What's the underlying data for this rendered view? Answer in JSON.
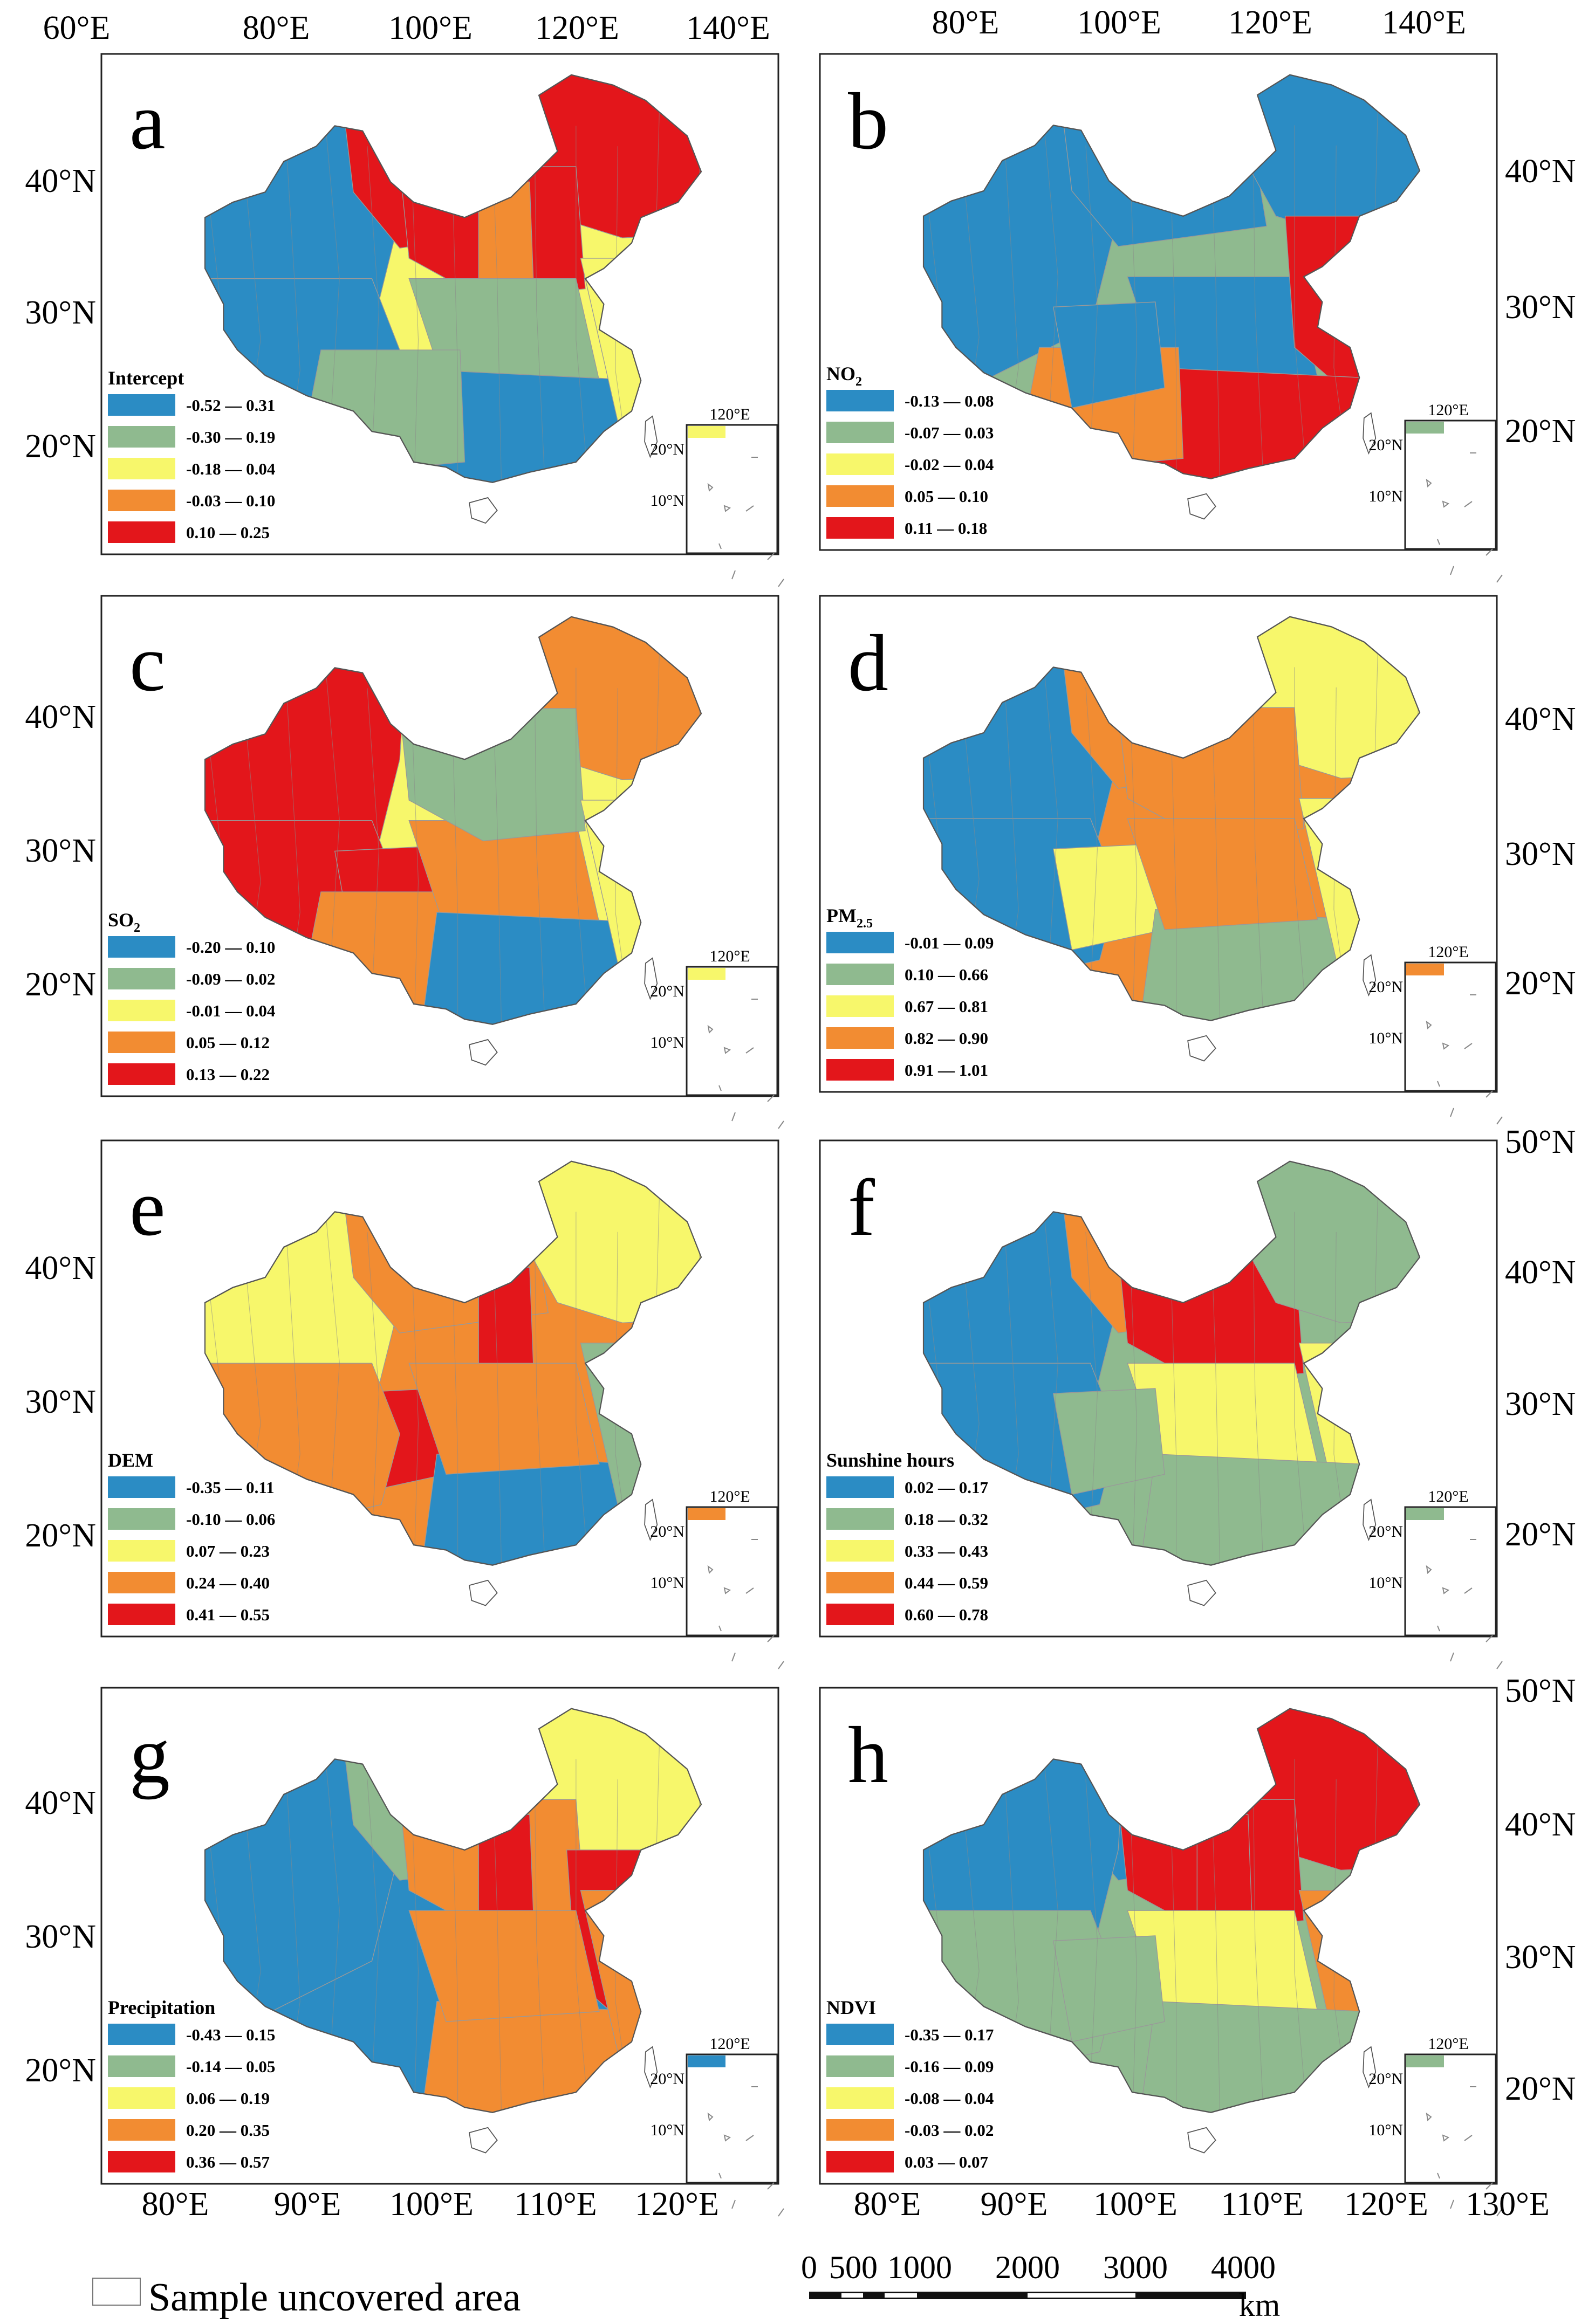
{
  "top_axis_labels": {
    "left": [
      "60°E",
      "80°E",
      "100°E",
      "120°E",
      "140°E"
    ],
    "right": [
      "80°E",
      "100°E",
      "120°E",
      "140°E"
    ]
  },
  "bottom_axis_labels": {
    "left": [
      "80°E",
      "90°E",
      "100°E",
      "110°E",
      "120°E"
    ],
    "right": [
      "80°E",
      "90°E",
      "100°E",
      "110°E",
      "120°E",
      "130°E"
    ]
  },
  "lat_labels": {
    "left": {
      "a": [
        "40°N",
        "30°N",
        "20°N"
      ],
      "c": [
        "40°N",
        "30°N",
        "20°N"
      ],
      "e": [
        "40°N",
        "30°N",
        "20°N"
      ],
      "g": [
        "40°N",
        "30°N",
        "20°N"
      ]
    },
    "right": {
      "b": [
        "40°N",
        "30°N",
        "20°N"
      ],
      "d": [
        "40°N",
        "30°N",
        "20°N"
      ],
      "f": [
        "50°N",
        "40°N",
        "30°N",
        "20°N"
      ],
      "h": [
        "50°N",
        "40°N",
        "30°N",
        "20°N"
      ]
    }
  },
  "inset_labels": {
    "lon": "120°E",
    "lat1": "20°N",
    "lat2": "10°N"
  },
  "legend_colors": [
    "#2b8cc4",
    "#8fba8f",
    "#f7f76b",
    "#f28c32",
    "#e3161b"
  ],
  "panels": [
    {
      "id": "a",
      "letter": "a",
      "legend_title": "Intercept",
      "classes": [
        "-0.52 — 0.31",
        "-0.30 — 0.19",
        "-0.18 — 0.04",
        "-0.03 — 0.10",
        "0.10 — 0.25"
      ]
    },
    {
      "id": "b",
      "letter": "b",
      "legend_title": "NO",
      "legend_sub": "2",
      "classes": [
        "-0.13 — 0.08",
        "-0.07 — 0.03",
        "-0.02 — 0.04",
        "0.05 — 0.10",
        "0.11 — 0.18"
      ]
    },
    {
      "id": "c",
      "letter": "c",
      "legend_title": "SO",
      "legend_sub": "2",
      "classes": [
        "-0.20 — 0.10",
        "-0.09 — 0.02",
        "-0.01 — 0.04",
        "0.05 — 0.12",
        "0.13 — 0.22"
      ]
    },
    {
      "id": "d",
      "letter": "d",
      "legend_title": "PM",
      "legend_sub": "2.5",
      "classes": [
        "-0.01 — 0.09",
        "0.10 — 0.66",
        "0.67 — 0.81",
        "0.82 — 0.90",
        "0.91 — 1.01"
      ]
    },
    {
      "id": "e",
      "letter": "e",
      "legend_title": "DEM",
      "classes": [
        "-0.35 — 0.11",
        "-0.10 — 0.06",
        "0.07 — 0.23",
        "0.24 — 0.40",
        "0.41 — 0.55"
      ]
    },
    {
      "id": "f",
      "letter": "f",
      "legend_title": "Sunshine hours",
      "classes": [
        "0.02 — 0.17",
        "0.18 — 0.32",
        "0.33 — 0.43",
        "0.44 — 0.59",
        "0.60 — 0.78"
      ]
    },
    {
      "id": "g",
      "letter": "g",
      "legend_title": "Precipitation",
      "classes": [
        "-0.43 — 0.15",
        "-0.14 — 0.05",
        "0.06 — 0.19",
        "0.20 — 0.35",
        "0.36 — 0.57"
      ]
    },
    {
      "id": "h",
      "letter": "h",
      "legend_title": "NDVI",
      "classes": [
        "-0.35 — 0.17",
        "-0.16 — 0.09",
        "-0.08 — 0.04",
        "-0.03 — 0.02",
        "0.03 — 0.07"
      ]
    }
  ],
  "footer": {
    "uncovered_label": "Sample uncovered area",
    "scale_ticks": [
      "0",
      "500",
      "1000",
      "2000",
      "3000",
      "4000"
    ],
    "scale_unit": "km"
  }
}
